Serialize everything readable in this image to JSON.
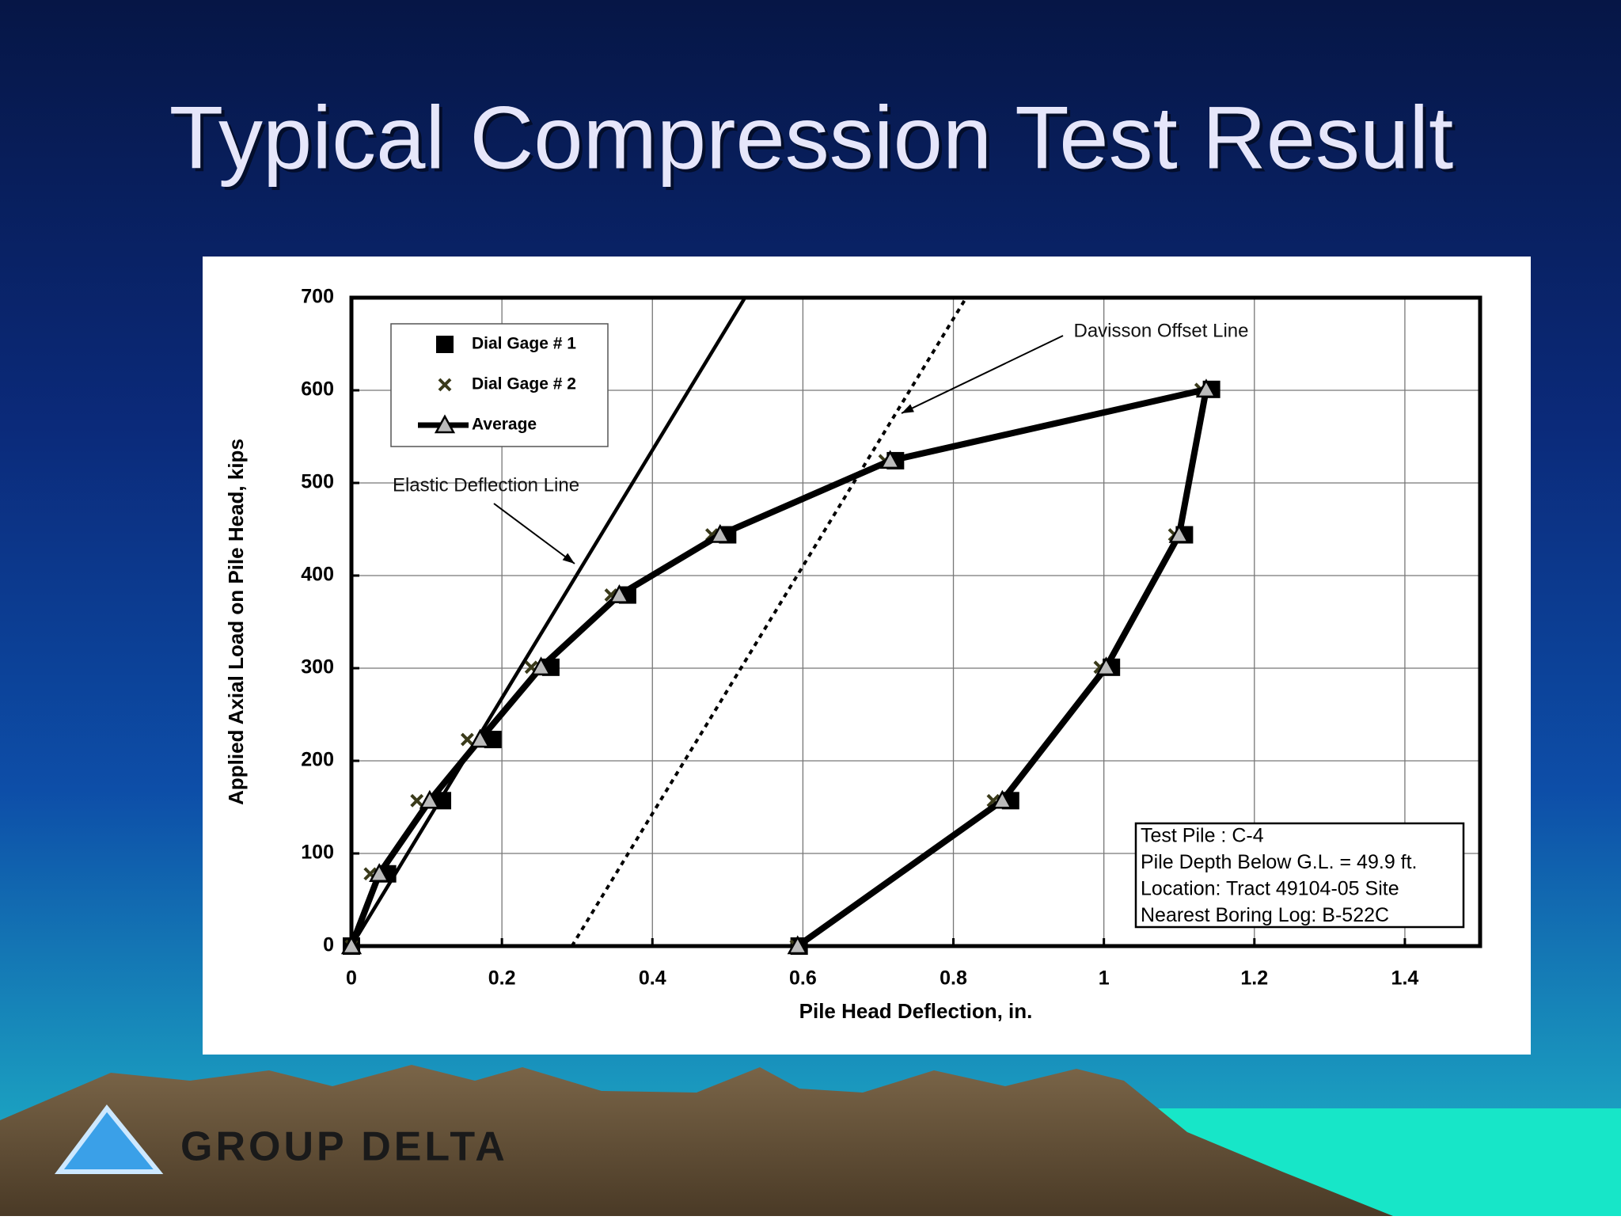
{
  "logo_text": "GROUP DELTA",
  "chart_data": {
    "type": "scatter",
    "title": "Typical Compression Test Result",
    "x_label": "Pile Head Deflection, in.",
    "y_label": "Applied Axial Load on Pile Head,  kips",
    "xlim": [
      0,
      1.5
    ],
    "xticks": [
      0,
      0.2,
      0.4,
      0.6,
      0.8,
      1,
      1.2,
      1.4
    ],
    "ylim": [
      0,
      700
    ],
    "yticks": [
      0,
      100,
      200,
      300,
      400,
      500,
      600,
      700
    ],
    "grid": true,
    "series": [
      {
        "name": "Dial Gage # 1",
        "marker": "square",
        "line": false,
        "color": "#000000",
        "x": [
          0,
          0.048,
          0.121,
          0.188,
          0.265,
          0.367,
          0.5,
          0.723,
          1.143,
          1.107,
          1.01,
          0.876,
          0.595
        ],
        "values": [
          0,
          78,
          157,
          223,
          301,
          379,
          444,
          524,
          601,
          444,
          301,
          157,
          0
        ]
      },
      {
        "name": "Dial Gage # 2",
        "marker": "x",
        "line": false,
        "color": "#3a3a1a",
        "x": [
          0,
          0.025,
          0.087,
          0.154,
          0.239,
          0.345,
          0.479,
          0.709,
          1.129,
          1.094,
          0.995,
          0.853,
          0.591
        ],
        "values": [
          0,
          78,
          157,
          223,
          301,
          379,
          444,
          524,
          601,
          444,
          301,
          157,
          0
        ]
      },
      {
        "name": "Average",
        "marker": "triangle",
        "line": true,
        "color": "#000000",
        "x": [
          0,
          0.037,
          0.104,
          0.171,
          0.252,
          0.356,
          0.49,
          0.716,
          1.136,
          1.1,
          1.003,
          0.865,
          0.593
        ],
        "values": [
          0,
          78,
          157,
          223,
          301,
          379,
          444,
          524,
          601,
          444,
          301,
          157,
          0
        ]
      }
    ],
    "reference_lines": [
      {
        "label": "Elastic Deflection Line",
        "dash": false,
        "x": [
          0,
          0.523
        ],
        "values": [
          0,
          700
        ]
      },
      {
        "label": "Davisson Offset Line",
        "dash": true,
        "x": [
          0.293,
          0.817
        ],
        "values": [
          0,
          700
        ]
      }
    ],
    "info_box": [
      "Test Pile : C-4",
      "Pile Depth Below G.L. = 49.9 ft.",
      "Location: Tract 49104-05 Site",
      "Nearest Boring Log: B-522C"
    ]
  }
}
